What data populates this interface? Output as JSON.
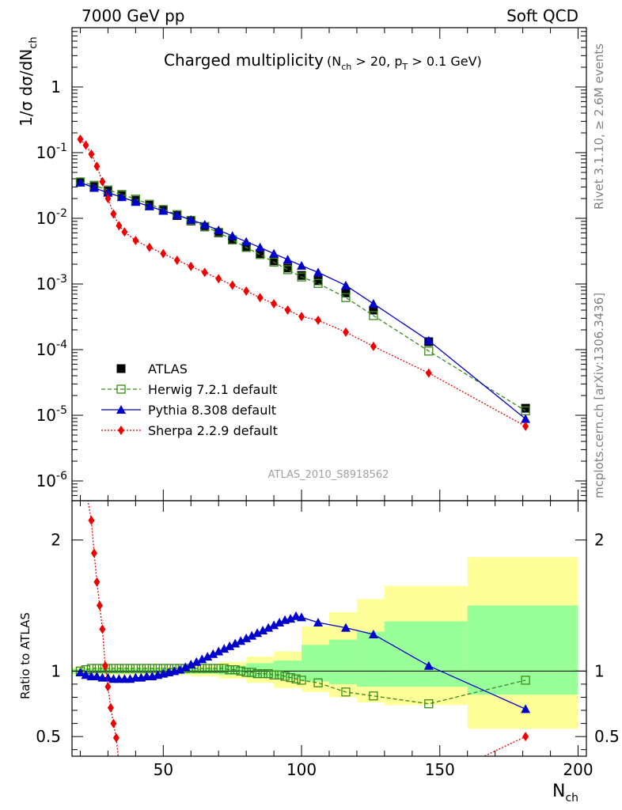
{
  "header": {
    "left": "7000 GeV pp",
    "right": "Soft QCD"
  },
  "side_text": {
    "rivet": "Rivet 3.1.10, ≥ 2.6M events",
    "mcplots": "mcplots.cern.ch [arXiv:1306.3436]"
  },
  "plot_title": {
    "main": "Charged multiplicity",
    "cuts_open": "(N",
    "cuts_sub1": "ch",
    "cuts_mid": " > 20, p",
    "cuts_sub2": "T",
    "cuts_close": " > 0.1 GeV)"
  },
  "analysis_id": "ATLAS_2010_S8918562",
  "colors": {
    "atlas": "#000000",
    "herwig": "#3a8a1a",
    "pythia": "#0000cc",
    "sherpa": "#ee0000",
    "band_outer": "#ffff99",
    "band_inner": "#99ff99"
  },
  "legend": {
    "placement": "lower-left",
    "entries": [
      {
        "key": "atlas",
        "label": "ATLAS"
      },
      {
        "key": "herwig",
        "label": "Herwig 7.2.1 default"
      },
      {
        "key": "pythia",
        "label": "Pythia 8.308 default"
      },
      {
        "key": "sherpa",
        "label": "Sherpa 2.2.9 default"
      }
    ]
  },
  "chart_data": [
    {
      "type": "scatter",
      "panel": "main",
      "ylabel": "1/σ dσ/dN_ch",
      "yscale": "log",
      "xlim": [
        17,
        203
      ],
      "ylim": [
        5e-07,
        8
      ],
      "y_tick_labels": [
        "1",
        "10^-1",
        "10^-2",
        "10^-3",
        "10^-4",
        "10^-5",
        "10^-6"
      ],
      "series": [
        {
          "name": "ATLAS",
          "key": "atlas",
          "style": "marker-square",
          "x": [
            20,
            25,
            30,
            35,
            40,
            45,
            50,
            55,
            60,
            65,
            70,
            75,
            80,
            85,
            90,
            95,
            100,
            106,
            116,
            126,
            146,
            181
          ],
          "values": [
            0.0355,
            0.0305,
            0.026,
            0.0222,
            0.0188,
            0.0158,
            0.0132,
            0.011,
            0.0091,
            0.0074,
            0.006,
            0.0047,
            0.0037,
            0.0029,
            0.00225,
            0.00175,
            0.00135,
            0.00112,
            0.00073,
            0.0004,
            0.000132,
            1.28e-05
          ]
        },
        {
          "name": "Herwig 7.2.1 default",
          "key": "herwig",
          "style": "open-square-dashed",
          "x": [
            20,
            25,
            30,
            35,
            40,
            45,
            50,
            55,
            60,
            65,
            70,
            75,
            80,
            85,
            90,
            95,
            100,
            106,
            116,
            126,
            146,
            181
          ],
          "values": [
            0.0358,
            0.0318,
            0.027,
            0.0231,
            0.0196,
            0.0164,
            0.0136,
            0.0114,
            0.0093,
            0.0075,
            0.0061,
            0.0047,
            0.0036,
            0.0028,
            0.00215,
            0.00165,
            0.00128,
            0.00102,
            0.00062,
            0.00033,
            9.5e-05,
            1.17e-05
          ]
        },
        {
          "name": "Pythia 8.308 default",
          "key": "pythia",
          "style": "triangle-solid",
          "x": [
            20,
            25,
            30,
            35,
            40,
            45,
            50,
            55,
            60,
            65,
            70,
            75,
            80,
            85,
            90,
            95,
            100,
            106,
            116,
            126,
            146,
            181
          ],
          "values": [
            0.0352,
            0.0291,
            0.0245,
            0.021,
            0.0178,
            0.0152,
            0.013,
            0.0112,
            0.0095,
            0.008,
            0.0066,
            0.0054,
            0.0044,
            0.0036,
            0.0029,
            0.00235,
            0.0019,
            0.0015,
            0.00095,
            0.0005,
            0.000137,
            8.8e-06
          ]
        },
        {
          "name": "Sherpa 2.2.9 default",
          "key": "sherpa",
          "style": "diamond-dotted",
          "x": [
            20,
            22,
            24,
            26,
            28,
            30,
            32,
            34,
            36,
            40,
            45,
            50,
            55,
            60,
            65,
            70,
            75,
            80,
            85,
            90,
            95,
            100,
            106,
            116,
            126,
            146,
            181
          ],
          "values": [
            0.16,
            0.13,
            0.095,
            0.062,
            0.036,
            0.02,
            0.0117,
            0.0077,
            0.0062,
            0.0046,
            0.0036,
            0.0029,
            0.0023,
            0.00185,
            0.0015,
            0.0012,
            0.00096,
            0.00078,
            0.00062,
            0.0005,
            0.0004,
            0.00032,
            0.00028,
            0.000185,
            0.000112,
            4.4e-05,
            6.8e-06
          ]
        }
      ]
    },
    {
      "type": "line",
      "panel": "ratio",
      "title": "",
      "xlabel": "N_ch",
      "ylabel": "Ratio to ATLAS",
      "xlim": [
        17,
        203
      ],
      "ylim": [
        0.35,
        2.3
      ],
      "x_tick_labels": [
        "50",
        "100",
        "150",
        "200"
      ],
      "y_tick_labels": [
        "0.5",
        "1",
        "2"
      ],
      "reference_line": 1,
      "uncertainty_bands": [
        {
          "xmin": 17,
          "xmax": 60,
          "inner": [
            0.98,
            1.02
          ],
          "outer": [
            0.97,
            1.03
          ]
        },
        {
          "xmin": 60,
          "xmax": 70,
          "inner": [
            0.98,
            1.02
          ],
          "outer": [
            0.96,
            1.04
          ]
        },
        {
          "xmin": 70,
          "xmax": 80,
          "inner": [
            0.97,
            1.04
          ],
          "outer": [
            0.94,
            1.07
          ]
        },
        {
          "xmin": 80,
          "xmax": 90,
          "inner": [
            0.95,
            1.06
          ],
          "outer": [
            0.91,
            1.11
          ]
        },
        {
          "xmin": 90,
          "xmax": 100,
          "inner": [
            0.94,
            1.08
          ],
          "outer": [
            0.87,
            1.15
          ]
        },
        {
          "xmin": 100,
          "xmax": 110,
          "inner": [
            0.92,
            1.2
          ],
          "outer": [
            0.84,
            1.34
          ]
        },
        {
          "xmin": 110,
          "xmax": 120,
          "inner": [
            0.9,
            1.24
          ],
          "outer": [
            0.8,
            1.45
          ]
        },
        {
          "xmin": 120,
          "xmax": 130,
          "inner": [
            0.88,
            1.3
          ],
          "outer": [
            0.76,
            1.55
          ]
        },
        {
          "xmin": 130,
          "xmax": 160,
          "inner": [
            0.88,
            1.38
          ],
          "outer": [
            0.74,
            1.65
          ]
        },
        {
          "xmin": 160,
          "xmax": 200,
          "inner": [
            0.82,
            1.5
          ],
          "outer": [
            0.56,
            1.87
          ]
        }
      ],
      "series": [
        {
          "name": "Herwig 7.2.1 default",
          "key": "herwig",
          "style": "open-square-dashed",
          "x": [
            20,
            22,
            24,
            26,
            28,
            30,
            32,
            34,
            36,
            38,
            40,
            42,
            44,
            46,
            48,
            50,
            52,
            54,
            56,
            58,
            60,
            62,
            64,
            66,
            68,
            70,
            72,
            74,
            76,
            78,
            80,
            82,
            84,
            86,
            88,
            90,
            92,
            94,
            96,
            98,
            100,
            106,
            116,
            126,
            146,
            181
          ],
          "values": [
            1.0,
            1.01,
            1.02,
            1.02,
            1.02,
            1.02,
            1.02,
            1.02,
            1.02,
            1.02,
            1.02,
            1.02,
            1.02,
            1.02,
            1.02,
            1.02,
            1.02,
            1.02,
            1.02,
            1.02,
            1.02,
            1.02,
            1.02,
            1.02,
            1.02,
            1.02,
            1.02,
            1.01,
            1.01,
            1.0,
            0.99,
            0.99,
            0.98,
            0.98,
            0.98,
            0.97,
            0.97,
            0.96,
            0.95,
            0.94,
            0.93,
            0.91,
            0.84,
            0.81,
            0.75,
            0.93
          ]
        },
        {
          "name": "Pythia 8.308 default",
          "key": "pythia",
          "style": "triangle-solid",
          "x": [
            20,
            22,
            24,
            26,
            28,
            30,
            32,
            34,
            36,
            38,
            40,
            42,
            44,
            46,
            48,
            50,
            52,
            54,
            56,
            58,
            60,
            62,
            64,
            66,
            68,
            70,
            72,
            74,
            76,
            78,
            80,
            82,
            84,
            86,
            88,
            90,
            92,
            94,
            96,
            98,
            100,
            106,
            116,
            126,
            146,
            181
          ],
          "values": [
            0.99,
            0.97,
            0.96,
            0.96,
            0.95,
            0.95,
            0.94,
            0.94,
            0.94,
            0.94,
            0.95,
            0.95,
            0.96,
            0.96,
            0.97,
            0.98,
            0.99,
            1.0,
            1.01,
            1.03,
            1.05,
            1.07,
            1.09,
            1.11,
            1.13,
            1.15,
            1.17,
            1.19,
            1.21,
            1.23,
            1.25,
            1.27,
            1.29,
            1.31,
            1.33,
            1.35,
            1.37,
            1.39,
            1.4,
            1.42,
            1.41,
            1.37,
            1.33,
            1.28,
            1.04,
            0.71
          ]
        },
        {
          "name": "Sherpa 2.2.9 default",
          "key": "sherpa",
          "style": "diamond-dotted",
          "x": [
            24,
            25,
            26,
            27,
            28,
            29,
            30,
            31,
            32,
            33,
            181
          ],
          "values": [
            2.15,
            1.9,
            1.68,
            1.5,
            1.32,
            1.04,
            0.88,
            0.72,
            0.6,
            0.49,
            0.5
          ]
        }
      ]
    }
  ]
}
